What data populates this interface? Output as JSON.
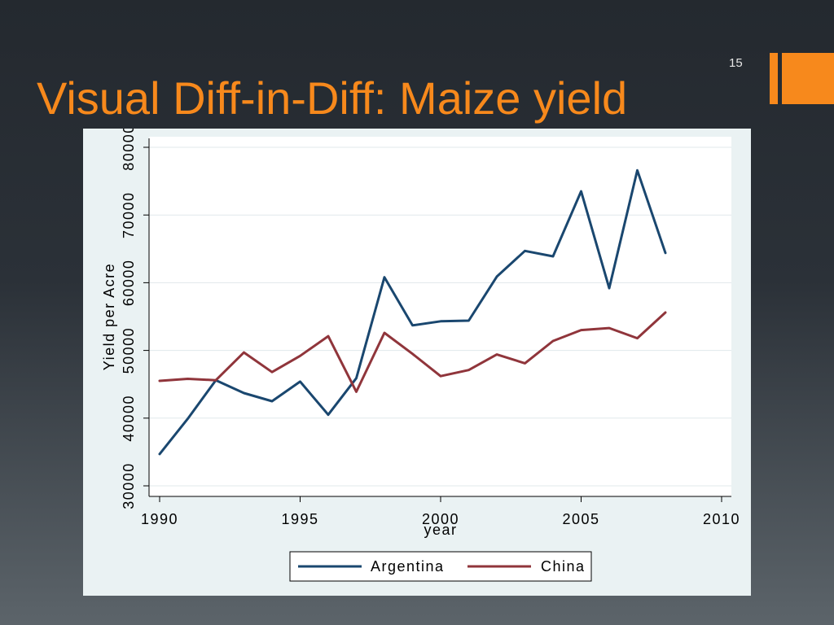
{
  "slide": {
    "title": "Visual Diff-in-Diff: Maize yield",
    "page_number": "15",
    "accent_color": "#f7891c"
  },
  "chart_data": {
    "type": "line",
    "xlabel": "year",
    "ylabel": "Yield per Acre",
    "xlim": [
      1990,
      2010
    ],
    "ylim": [
      30000,
      80000
    ],
    "x_ticks": [
      1990,
      1995,
      2000,
      2005,
      2010
    ],
    "y_ticks": [
      30000,
      40000,
      50000,
      60000,
      70000,
      80000
    ],
    "grid": true,
    "legend": {
      "position": "bottom"
    },
    "x": [
      1990,
      1991,
      1992,
      1993,
      1994,
      1995,
      1996,
      1997,
      1998,
      1999,
      2000,
      2001,
      2002,
      2003,
      2004,
      2005,
      2006,
      2007,
      2008
    ],
    "series": [
      {
        "name": "Argentina",
        "color": "#1a476f",
        "values": [
          34700,
          39900,
          45600,
          43700,
          42500,
          45400,
          40500,
          45900,
          60800,
          53700,
          54300,
          54400,
          60900,
          64700,
          63900,
          73500,
          59200,
          76600,
          64400
        ]
      },
      {
        "name": "China",
        "color": "#90353b",
        "values": [
          45500,
          45800,
          45600,
          49700,
          46800,
          49200,
          52100,
          43900,
          52600,
          49500,
          46200,
          47100,
          49400,
          48100,
          51400,
          53000,
          53300,
          51800,
          55600
        ]
      }
    ]
  }
}
